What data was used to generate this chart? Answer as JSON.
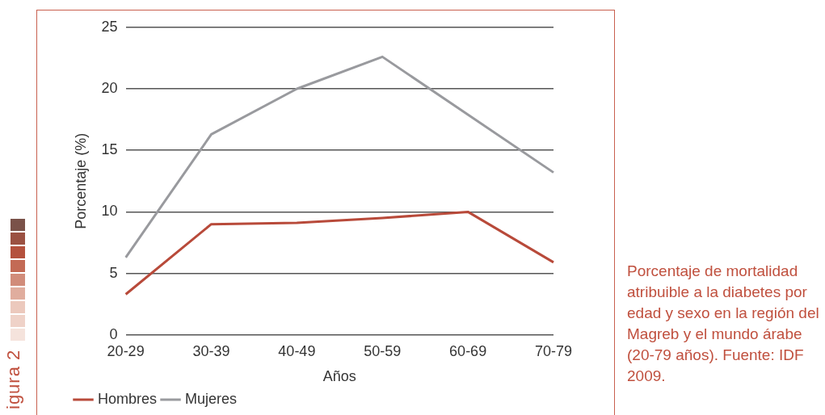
{
  "chart_data": {
    "type": "line",
    "xlabel": "Años",
    "ylabel": "Porcentaje (%)",
    "categories": [
      "20-29",
      "30-39",
      "40-49",
      "50-59",
      "60-69",
      "70-79"
    ],
    "series": [
      {
        "name": "Hombres",
        "color": "#b84a3a",
        "values": [
          3.3,
          9.0,
          9.1,
          9.5,
          10.0,
          5.9
        ]
      },
      {
        "name": "Mujeres",
        "color": "#999a9e",
        "values": [
          6.3,
          16.3,
          20.0,
          22.6,
          17.9,
          13.2
        ]
      }
    ],
    "ylim": [
      0,
      25
    ],
    "yticks": [
      0,
      5,
      10,
      15,
      20,
      25
    ],
    "grid": "y",
    "legend": "bottom left",
    "marker": "none",
    "line_style": "solid",
    "annotations": [
      "Porcentaje de mortalidad atribuible a la diabetes por edad y sexo en la región del Magreb y el mundo árabe (20-79 años). Fuente: IDF 2009.",
      "igura 2"
    ]
  }
}
